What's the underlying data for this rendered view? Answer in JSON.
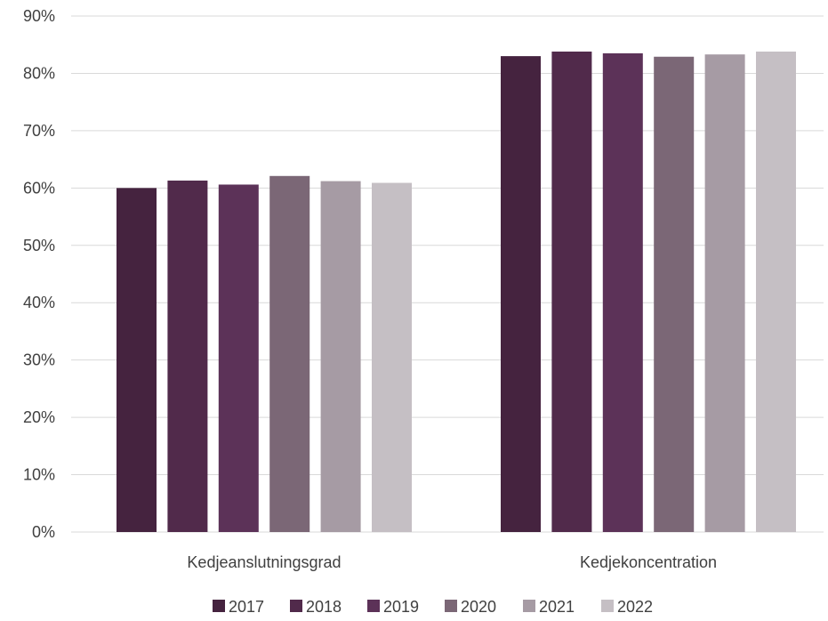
{
  "chart_data": {
    "type": "bar",
    "categories": [
      "Kedjeanslutningsgrad",
      "Kedjekoncentration"
    ],
    "series": [
      {
        "name": "2017",
        "values": [
          0.6,
          0.83
        ],
        "color": "#45233f"
      },
      {
        "name": "2018",
        "values": [
          0.613,
          0.838
        ],
        "color": "#512a4b"
      },
      {
        "name": "2019",
        "values": [
          0.606,
          0.835
        ],
        "color": "#5c3258"
      },
      {
        "name": "2020",
        "values": [
          0.621,
          0.829
        ],
        "color": "#7b6776"
      },
      {
        "name": "2021",
        "values": [
          0.612,
          0.833
        ],
        "color": "#a69ba4"
      },
      {
        "name": "2022",
        "values": [
          0.609,
          0.838
        ],
        "color": "#c5bfc4"
      }
    ],
    "yticks": [
      "0%",
      "10%",
      "20%",
      "30%",
      "40%",
      "50%",
      "60%",
      "70%",
      "80%",
      "90%"
    ],
    "ylim": [
      0,
      0.9
    ],
    "grid": true,
    "legend_position": "bottom",
    "gridline_color": "#d9d9d9"
  }
}
